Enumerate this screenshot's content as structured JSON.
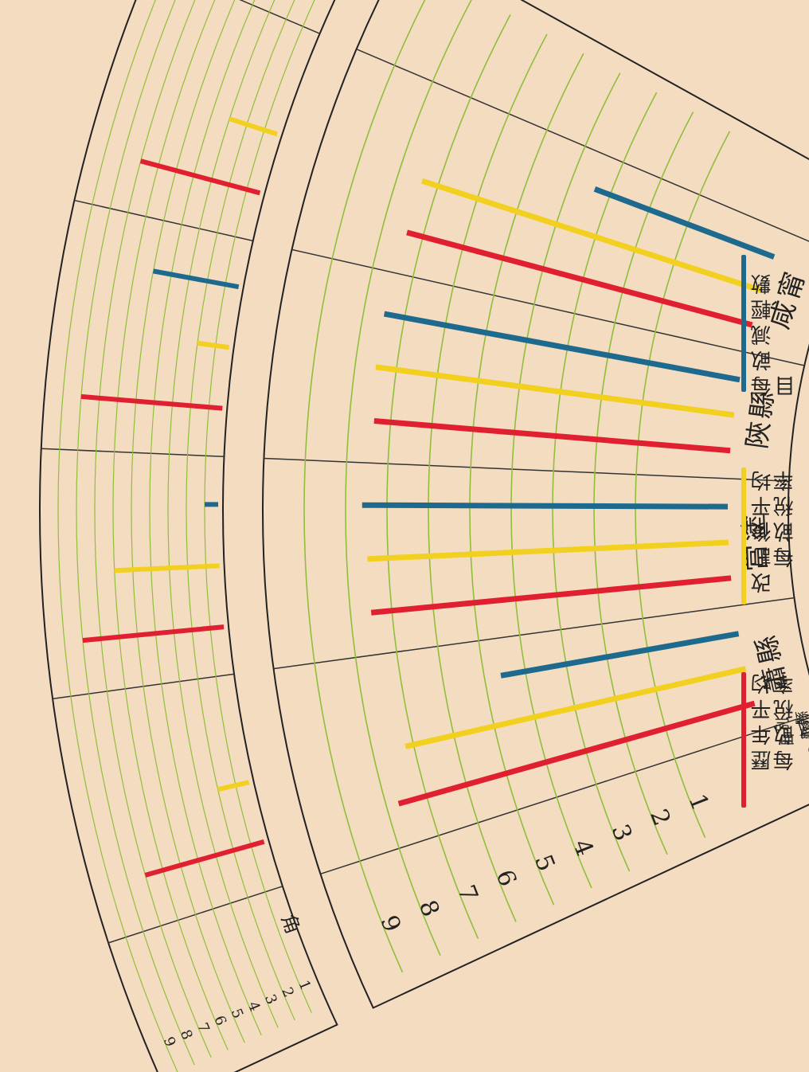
{
  "chart_data": {
    "type": "bar",
    "orientation": "radial-fan",
    "main_axis": {
      "unit_label": "0",
      "unit_char": "圓",
      "ticks": [
        "1",
        "2",
        "3",
        "4",
        "5",
        "6",
        "7",
        "8",
        "9"
      ],
      "corner_labels": [
        "數",
        "目",
        "縣",
        "別"
      ]
    },
    "categories": [
      "蕭縣",
      "當塗",
      "陝縣",
      "咸甯"
    ],
    "series": [
      {
        "name": "歷年平均每畝稅率",
        "color": "#e02030",
        "values": [
          7.7,
          7.5,
          7.4,
          7.4
        ]
      },
      {
        "name": "改訂後平均每畝稅率",
        "color": "#f2d020",
        "values": [
          7.2,
          7.5,
          7.5,
          7.4
        ]
      },
      {
        "name": "每畝減輕數目",
        "color": "#1e6a8e",
        "values": [
          4.6,
          7.6,
          7.5,
          3.4
        ]
      }
    ],
    "fraction_axis": {
      "unit_char": "角",
      "ticks": [
        "1",
        "2",
        "3",
        "4",
        "5",
        "6",
        "7",
        "8",
        "9"
      ],
      "values": {
        "歷年平均每畝稅率": [
          0.7,
          0.8,
          0.8,
          0.7
        ],
        "改訂後平均每畝稅率": [
          0.2,
          0.6,
          0.2,
          0.3
        ],
        "每畝減輕數目": [
          null,
          0.1,
          0.5,
          null
        ]
      }
    }
  },
  "legend": [
    {
      "line1": "歷年平均",
      "line2": "每畝稅率",
      "color": "#e02030"
    },
    {
      "line1": "改訂後平均",
      "line2": "每畝稅率",
      "color": "#f2d020"
    },
    {
      "line1": "每畝減輕數目",
      "line2": "",
      "color": "#1e6a8e"
    }
  ]
}
